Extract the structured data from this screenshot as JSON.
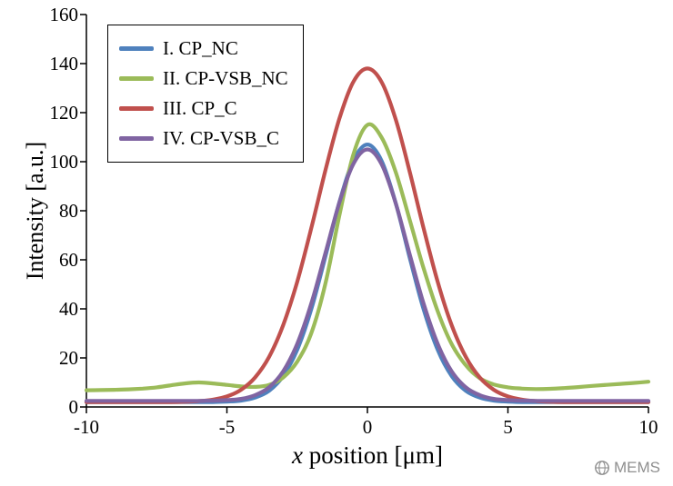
{
  "chart_data": {
    "type": "line",
    "title": "",
    "xlabel_italic": "x",
    "xlabel_rest": " position [μm]",
    "ylabel": "Intensity [a.u.]",
    "xlim": [
      -10,
      10
    ],
    "ylim": [
      0,
      160
    ],
    "x_ticks": [
      -10,
      -5,
      0,
      5,
      10
    ],
    "y_ticks": [
      0,
      20,
      40,
      60,
      80,
      100,
      120,
      140,
      160
    ],
    "grid": false,
    "legend_position": "top-left",
    "x": [
      -10,
      -9.5,
      -9,
      -8.5,
      -8,
      -7.5,
      -7,
      -6.5,
      -6,
      -5.5,
      -5,
      -4.5,
      -4,
      -3.5,
      -3,
      -2.5,
      -2,
      -1.5,
      -1,
      -0.5,
      0,
      0.5,
      1,
      1.5,
      2,
      2.5,
      3,
      3.5,
      4,
      4.5,
      5,
      5.5,
      6,
      6.5,
      7,
      7.5,
      8,
      8.5,
      9,
      9.5,
      10
    ],
    "series": [
      {
        "name": "I. CP_NC",
        "color": "#4f81bd",
        "values": [
          2,
          2,
          2,
          2,
          2,
          2,
          2,
          2,
          2,
          2,
          2.2,
          2.6,
          3.8,
          6.6,
          12.6,
          23.3,
          39.8,
          61.1,
          83.4,
          100.5,
          107,
          100.5,
          83.4,
          61.1,
          39.8,
          23.3,
          12.6,
          6.6,
          3.8,
          2.6,
          2.2,
          2,
          2,
          2,
          2,
          2,
          2,
          2,
          2,
          2,
          2
        ]
      },
      {
        "name": "II. CP-VSB_NC",
        "color": "#9bbb59",
        "values": [
          6.8,
          6.9,
          7,
          7.2,
          7.5,
          8,
          8.8,
          9.6,
          10,
          9.6,
          9,
          8.4,
          8.2,
          9,
          12,
          18.5,
          30,
          50,
          78,
          103,
          115,
          110,
          96,
          76.5,
          56.5,
          39,
          25.6,
          17,
          11.7,
          9.2,
          8,
          7.5,
          7.3,
          7.4,
          7.7,
          8.1,
          8.6,
          9,
          9.4,
          9.8,
          10.3
        ]
      },
      {
        "name": "III. CP_C",
        "color": "#c0504d",
        "values": [
          2,
          2,
          2,
          2,
          2,
          2,
          2,
          2.1,
          2.4,
          3,
          4.3,
          7,
          12,
          20.4,
          33.3,
          51,
          72.8,
          96.2,
          117.5,
          132.6,
          138,
          132.6,
          117.5,
          96.2,
          72.8,
          51,
          33.3,
          20.4,
          12,
          7,
          4.3,
          3,
          2.4,
          2.1,
          2,
          2,
          2,
          2,
          2,
          2,
          2
        ]
      },
      {
        "name": "IV. CP-VSB_C",
        "color": "#8064a2",
        "values": [
          2.5,
          2.5,
          2.5,
          2.5,
          2.5,
          2.5,
          2.5,
          2.5,
          2.5,
          2.6,
          2.8,
          3.3,
          4.8,
          8,
          14.5,
          25.7,
          42.1,
          62.5,
          83.3,
          99.1,
          105,
          99.1,
          83.3,
          62.5,
          42.1,
          25.7,
          14.5,
          8,
          4.8,
          3.3,
          2.8,
          2.6,
          2.5,
          2.5,
          2.5,
          2.5,
          2.5,
          2.5,
          2.5,
          2.5,
          2.5
        ]
      }
    ]
  },
  "watermark": {
    "label": "MEMS"
  }
}
